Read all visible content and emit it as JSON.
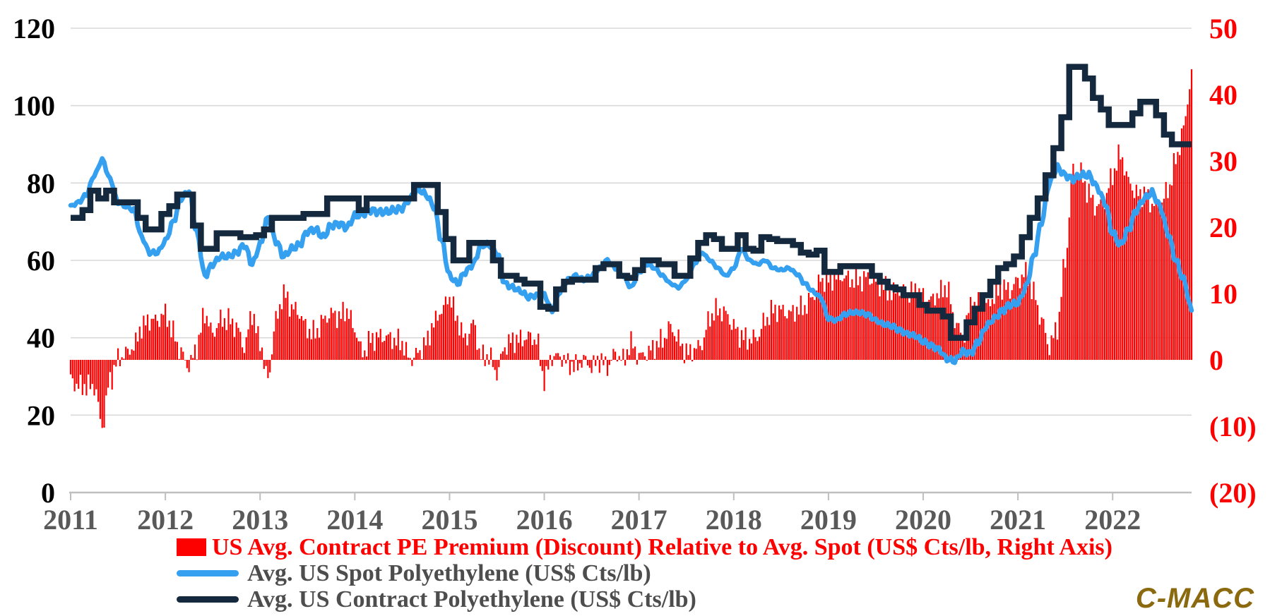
{
  "colors": {
    "bar_red": "#FD0000",
    "spot_blue": "#36A0F0",
    "contract_navy": "#15293E",
    "grid": "#D9D9D9",
    "axis_line": "#BFBFBF",
    "left_tick_text": "#000000",
    "right_tick_text": "#FF0000",
    "year_text": "#595959",
    "legend_gray_text": "#4D4D4D",
    "brand_gold": "#8A690F"
  },
  "branding": {
    "logo_text": "C-MACC"
  },
  "legend": {
    "items": [
      {
        "label": "US Avg. Contract PE Premium (Discount) Relative to Avg. Spot (US$ Cts/lb, Right Axis)",
        "swatch": "bar",
        "color": "#FD0000",
        "text_color": "#FF0000"
      },
      {
        "label": "Avg. US Spot Polyethylene (US$ Cts/lb)",
        "swatch": "line",
        "color": "#36A0F0",
        "text_color": "#4D4D4D"
      },
      {
        "label": "Avg. US Contract Polyethylene (US$ Cts/lb)",
        "swatch": "line",
        "color": "#15293E",
        "text_color": "#4D4D4D"
      }
    ]
  },
  "chart_data": {
    "type": "combo",
    "title": "",
    "x": {
      "start": "2011-01",
      "end": "2022-11",
      "frequency": "monthly",
      "count": 143,
      "tick_year_labels": [
        "2011",
        "2012",
        "2013",
        "2014",
        "2015",
        "2016",
        "2017",
        "2018",
        "2019",
        "2020",
        "2021",
        "2022"
      ]
    },
    "left_axis": {
      "range": [
        0,
        120
      ],
      "tick_step": 20,
      "tick_labels": [
        "0",
        "20",
        "40",
        "60",
        "80",
        "100",
        "120"
      ],
      "grid": true
    },
    "right_axis": {
      "range": [
        -20,
        50
      ],
      "tick_step": 10,
      "tick_labels": [
        "50",
        "40",
        "30",
        "20",
        "10",
        "0",
        "(10)",
        "(20)"
      ],
      "tick_values": [
        50,
        40,
        30,
        20,
        10,
        0,
        -10,
        -20
      ],
      "grid": false
    },
    "series": [
      {
        "name": "Avg. US Spot Polyethylene (US$ Cts/lb)",
        "type": "line",
        "axis": "left",
        "color": "#36A0F0",
        "values": [
          74,
          75,
          77,
          82,
          86,
          81,
          75,
          74,
          73,
          66,
          62,
          62,
          65,
          70,
          76,
          78,
          67,
          56,
          59,
          61,
          61,
          62,
          64,
          59,
          64,
          71,
          65,
          61,
          63,
          64,
          67.5,
          68,
          66,
          69,
          69.5,
          68.5,
          71.5,
          72,
          73,
          72.5,
          72.5,
          73,
          73.5,
          76,
          78.5,
          77,
          74,
          65,
          56,
          54,
          57,
          59,
          64,
          64,
          62,
          54,
          53,
          52,
          50.5,
          51,
          51,
          47,
          52,
          55,
          56,
          55,
          56,
          58,
          60,
          58,
          56,
          53,
          57,
          59,
          58,
          56,
          54,
          53,
          55,
          59,
          62,
          60,
          58,
          56,
          58,
          63,
          60,
          59,
          60,
          58,
          57.5,
          58,
          56.5,
          54,
          52,
          50.5,
          45,
          44.5,
          46,
          46.5,
          46.5,
          46,
          44.5,
          43.5,
          43,
          42,
          41,
          40.5,
          39,
          38,
          37,
          34.5,
          34,
          36.5,
          36,
          39,
          43,
          45,
          47,
          48.5,
          49,
          53,
          61,
          70,
          80,
          84,
          82,
          81,
          82,
          82,
          79,
          75,
          67,
          64,
          68,
          73,
          76,
          77.5,
          74,
          67,
          60,
          55,
          47
        ]
      },
      {
        "name": "Avg. US Contract Polyethylene (US$ Cts/lb)",
        "type": "step-line",
        "axis": "left",
        "color": "#15293E",
        "values": [
          71,
          71,
          73,
          78,
          76,
          78,
          75,
          75,
          75,
          71,
          68,
          68,
          72,
          74,
          77,
          77,
          69,
          63,
          63,
          67,
          67,
          67,
          66,
          66,
          66.5,
          68,
          71,
          71,
          71,
          71,
          72,
          72,
          72,
          76,
          76,
          76,
          76,
          73,
          76,
          76,
          76,
          76,
          76,
          76,
          79.5,
          79.5,
          79.5,
          72.5,
          65.5,
          60,
          60,
          64.5,
          64.5,
          64.5,
          60,
          56,
          56,
          55,
          54,
          54,
          48,
          47.5,
          52.5,
          54.5,
          55,
          55,
          55,
          58,
          59,
          59,
          56,
          55.5,
          57.5,
          60,
          60,
          59,
          59,
          56,
          56,
          60.5,
          64.5,
          66.5,
          65.5,
          63,
          63,
          66.5,
          63,
          62.5,
          66,
          65.5,
          65,
          65,
          64,
          62,
          61.5,
          62.5,
          57,
          57,
          58.5,
          58.5,
          58.5,
          58.5,
          56,
          54.5,
          53,
          52.5,
          51,
          51,
          48.5,
          47,
          47,
          45.5,
          40,
          40,
          44,
          47.5,
          51,
          54.5,
          58,
          59,
          61,
          66,
          71,
          76,
          82,
          89,
          97,
          110,
          110,
          107,
          102,
          99,
          95,
          95,
          95,
          98,
          101,
          101,
          97.5,
          92.5,
          90,
          90,
          90
        ]
      },
      {
        "name": "US Avg. Contract PE Premium (Discount) Relative to Avg. Spot (US$ Cts/lb, Right Axis)",
        "type": "bar",
        "axis": "right",
        "color": "#FD0000",
        "derived_from": "contract minus spot",
        "values": [
          -3,
          -4,
          -4,
          -4,
          -10,
          -3,
          0,
          1,
          2,
          5,
          6,
          6,
          7,
          4,
          1,
          -1,
          2,
          7,
          4,
          6,
          6,
          5,
          2,
          7,
          2.5,
          -3,
          6,
          10,
          8,
          7,
          4.5,
          4,
          6,
          7,
          6.5,
          7.5,
          4.5,
          1,
          3,
          3.5,
          3.5,
          3,
          2.5,
          0,
          1,
          2.5,
          5.5,
          7.5,
          9.5,
          6,
          3,
          5.5,
          0.5,
          0.5,
          -2,
          2,
          3,
          3,
          3.5,
          3,
          -3,
          0.5,
          0.5,
          -0.5,
          -1,
          0,
          -1,
          0,
          -1,
          1,
          0,
          2.5,
          0.5,
          1,
          2,
          3,
          5,
          3,
          1,
          1.5,
          2.5,
          6.5,
          7.5,
          7,
          5,
          3.5,
          3,
          3.5,
          6,
          7.5,
          7.5,
          7,
          7.5,
          8,
          9.5,
          12,
          12,
          12.5,
          12.5,
          12,
          12,
          12.5,
          11.5,
          11,
          10,
          10.5,
          10,
          10.5,
          9.5,
          9,
          10,
          11,
          6,
          3.5,
          8,
          8.5,
          8,
          9.5,
          11,
          10.5,
          12,
          13,
          10,
          6,
          2,
          5,
          15,
          29,
          28,
          25,
          23,
          24,
          28,
          31,
          27,
          25,
          25,
          23.5,
          23.5,
          25.5,
          30,
          35,
          43
        ]
      }
    ]
  }
}
